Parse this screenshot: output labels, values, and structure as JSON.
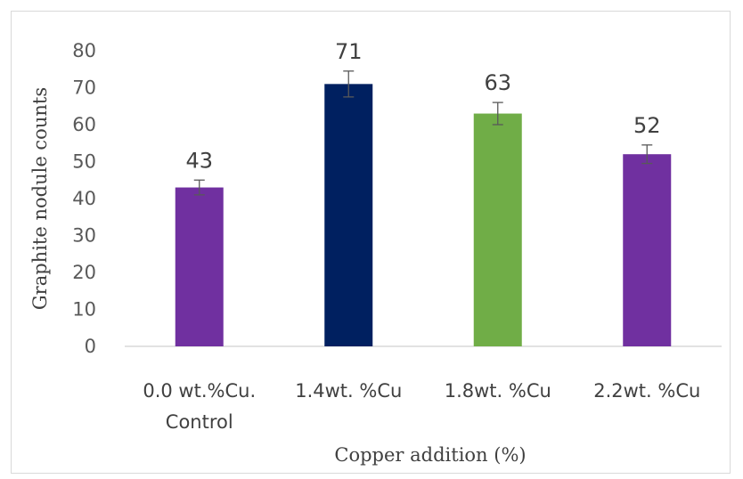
{
  "chart_data": {
    "type": "bar",
    "categories": [
      "0.0 wt.%Cu.",
      "1.4wt. %Cu",
      "1.8wt. %Cu",
      "2.2wt. %Cu"
    ],
    "category_sublabels": [
      "Control",
      "",
      "",
      ""
    ],
    "values": [
      43,
      71,
      63,
      52
    ],
    "error": [
      2,
      3.5,
      3,
      2.5
    ],
    "data_labels": [
      "43",
      "71",
      "63",
      "52"
    ],
    "colors": [
      "#7030a0",
      "#002060",
      "#70ad47",
      "#7030a0"
    ],
    "title": "",
    "xlabel": "Copper addition  (%)",
    "ylabel": "Graphite nodule counts",
    "ylim": [
      0,
      80
    ],
    "yticks": [
      0,
      10,
      20,
      30,
      40,
      50,
      60,
      70,
      80
    ],
    "ytick_labels": [
      "0",
      "10",
      "20",
      "30",
      "40",
      "50",
      "60",
      "70",
      "80"
    ],
    "grid": false,
    "legend": "none"
  }
}
